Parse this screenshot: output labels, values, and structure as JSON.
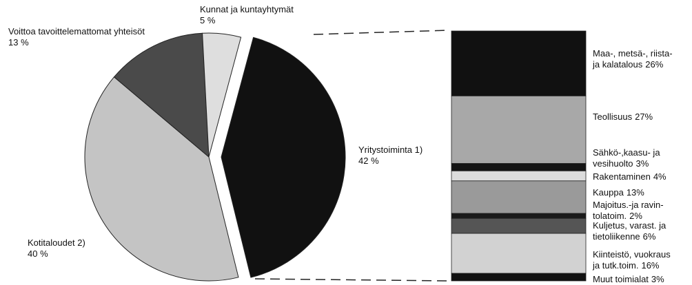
{
  "chart_data": [
    {
      "type": "pie",
      "categories": [
        "Yritystoiminta 1)",
        "Kotitaloudet 2)",
        "Voittoa tavoittelemattomat yhteisöt",
        "Kunnat  ja kuntayhtymät"
      ],
      "values": [
        42,
        40,
        13,
        5
      ],
      "value_labels": [
        "42 %",
        "40 %",
        "13 %",
        "5 %"
      ],
      "colors": [
        "#111111",
        "#c4c4c4",
        "#4a4a4a",
        "#dedede"
      ]
    },
    {
      "type": "stacked-bar",
      "categories": [
        "Maa-, metsä-, riista-\nja kalatalous",
        "Teollisuus",
        "Sähkö-,kaasu- ja\nvesihuolto",
        "Rakentaminen",
        "Kauppa",
        "Majoitus.-ja ravin-\ntolatoim.",
        "Kuljetus, varast. ja\ntietoliikenne",
        "Kiinteistö, vuokraus\nja tutk.toim.",
        "Muut toimialat"
      ],
      "values": [
        26,
        27,
        3,
        4,
        13,
        2,
        6,
        16,
        3
      ],
      "value_labels": [
        "26%",
        "27%",
        "3%",
        "4%",
        "13%",
        "2%",
        "6%",
        "16%",
        "3%"
      ],
      "colors": [
        "#111111",
        "#a8a8a8",
        "#151515",
        "#dcdcdc",
        "#9a9a9a",
        "#1a1a1a",
        "#555555",
        "#d2d2d2",
        "#111111"
      ]
    }
  ]
}
